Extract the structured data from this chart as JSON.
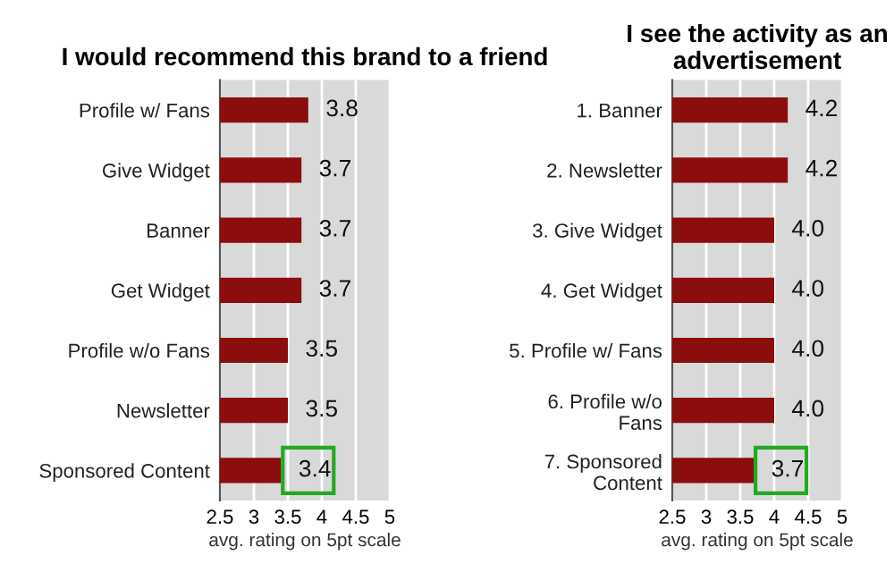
{
  "chart_data": [
    {
      "type": "bar",
      "orientation": "horizontal",
      "title": "I would recommend this brand to a friend",
      "xlabel": "avg. rating on 5pt scale",
      "categories": [
        "Profile w/ Fans",
        "Give Widget",
        "Banner",
        "Get Widget",
        "Profile w/o Fans",
        "Newsletter",
        "Sponsored Content"
      ],
      "values": [
        3.8,
        3.7,
        3.7,
        3.7,
        3.5,
        3.5,
        3.4
      ],
      "value_labels": [
        "3.8",
        "3.7",
        "3.7",
        "3.7",
        "3.5",
        "3.5",
        "3.4"
      ],
      "color": "#8b0d0d",
      "xlim": [
        2.5,
        5
      ],
      "xticks": [
        2.5,
        3,
        3.5,
        4,
        4.5,
        5
      ],
      "grid": "x"
    },
    {
      "type": "bar",
      "orientation": "horizontal",
      "title": "I see the activity as an advertisement",
      "xlabel": "avg. rating on 5pt scale",
      "categories": [
        "1. Banner",
        "2. Newsletter",
        "3. Give Widget",
        "4. Get Widget",
        "5. Profile w/ Fans",
        "6. Profile w/o Fans",
        "7. Sponsored Content"
      ],
      "values": [
        4.2,
        4.2,
        4.0,
        4.0,
        4.0,
        4.0,
        3.7
      ],
      "value_labels": [
        "4.2",
        "4.2",
        "4.0",
        "4.0",
        "4.0",
        "4.0",
        "3.7"
      ],
      "color": "#8b0d0d",
      "xlim": [
        2.5,
        5
      ],
      "xticks": [
        2.5,
        3,
        3.5,
        4,
        4.5,
        5
      ],
      "grid": "x"
    }
  ]
}
